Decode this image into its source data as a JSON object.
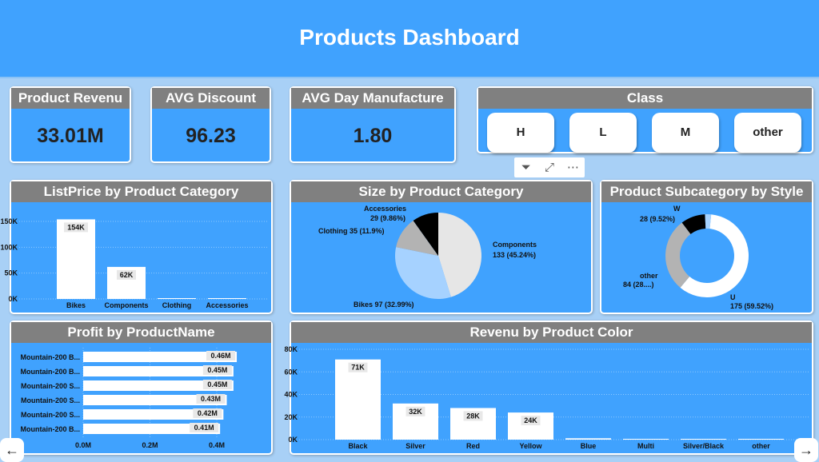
{
  "title": "Products Dashboard",
  "kpis": [
    {
      "label": "Product Revenu",
      "value": "33.01M"
    },
    {
      "label": "AVG Discount",
      "value": "96.23"
    },
    {
      "label": "AVG Day Manufacture",
      "value": "1.80"
    }
  ],
  "class_slicer": {
    "title": "Class",
    "options": [
      "H",
      "L",
      "M",
      "other"
    ]
  },
  "visual_icons": [
    "filter-icon",
    "focus-mode-icon",
    "more-options-icon"
  ],
  "listprice": {
    "title": "ListPrice by Product Category",
    "yticks": [
      "0K",
      "50K",
      "100K",
      "150K"
    ],
    "chart_data": {
      "type": "bar",
      "categories": [
        "Bikes",
        "Components",
        "Clothing",
        "Accessories"
      ],
      "values": [
        154000,
        62000,
        1200,
        800
      ],
      "labels": [
        "154K",
        "62K",
        "",
        ""
      ],
      "ylim": [
        0,
        150000
      ]
    }
  },
  "size": {
    "title": "Size by Product Category",
    "chart_data": {
      "type": "pie",
      "slices": [
        {
          "name": "Components",
          "value": 133,
          "pct": "45.24%",
          "color": "#e6e6e6",
          "l1": "Components",
          "l2": "133 (45.24%)"
        },
        {
          "name": "Bikes",
          "value": 97,
          "pct": "32.99%",
          "color": "#a6d2ff",
          "l1": "Bikes 97 (32.99%)",
          "l2": ""
        },
        {
          "name": "Clothing",
          "value": 35,
          "pct": "11.9%",
          "color": "#b3b3b3",
          "l1": "Clothing 35 (11.9%)",
          "l2": ""
        },
        {
          "name": "Accessories",
          "value": 29,
          "pct": "9.86%",
          "color": "#000000",
          "l1": "Accessories",
          "l2": "29 (9.86%)"
        }
      ]
    }
  },
  "style": {
    "title": "Product Subcategory by Style",
    "chart_data": {
      "type": "pie",
      "donut": true,
      "slices": [
        {
          "name": "U",
          "value": 175,
          "pct": "59.52%",
          "color": "#ffffff",
          "l1": "U",
          "l2": "175 (59.52%)"
        },
        {
          "name": "other",
          "value": 84,
          "pct": "28....",
          "color": "#b3b3b3",
          "l1": "other",
          "l2": "84 (28....)"
        },
        {
          "name": "W",
          "value": 28,
          "pct": "9.52%",
          "color": "#000000",
          "l1": "W",
          "l2": "28 (9.52%)"
        },
        {
          "name": "",
          "value": 7,
          "pct": "",
          "color": "#a6d2ff",
          "l1": "",
          "l2": ""
        }
      ]
    }
  },
  "profit": {
    "title": "Profit by ProductName",
    "xticks": [
      "0.0M",
      "0.2M",
      "0.4M"
    ],
    "chart_data": {
      "type": "bar",
      "orientation": "horizontal",
      "categories": [
        "Mountain-200 B...",
        "Mountain-200 B...",
        "Mountain-200 S...",
        "Mountain-200 S...",
        "Mountain-200 S...",
        "Mountain-200 B..."
      ],
      "values": [
        0.46,
        0.45,
        0.45,
        0.43,
        0.42,
        0.41
      ],
      "labels": [
        "0.46M",
        "0.45M",
        "0.45M",
        "0.43M",
        "0.42M",
        "0.41M"
      ],
      "xlim": [
        0,
        0.4
      ]
    }
  },
  "revenu": {
    "title": "Revenu by Product Color",
    "yticks": [
      "0K",
      "20K",
      "40K",
      "60K",
      "80K"
    ],
    "chart_data": {
      "type": "bar",
      "categories": [
        "Black",
        "Silver",
        "Red",
        "Yellow",
        "Blue",
        "Multi",
        "Silver/Black",
        "other"
      ],
      "values": [
        71,
        32,
        28,
        24,
        1.2,
        0.6,
        0.6,
        0.6
      ],
      "labels": [
        "71K",
        "32K",
        "28K",
        "24K",
        "",
        "",
        "",
        ""
      ],
      "ylim": [
        0,
        80
      ]
    }
  },
  "nav": {
    "prev": "←",
    "next": "→"
  }
}
